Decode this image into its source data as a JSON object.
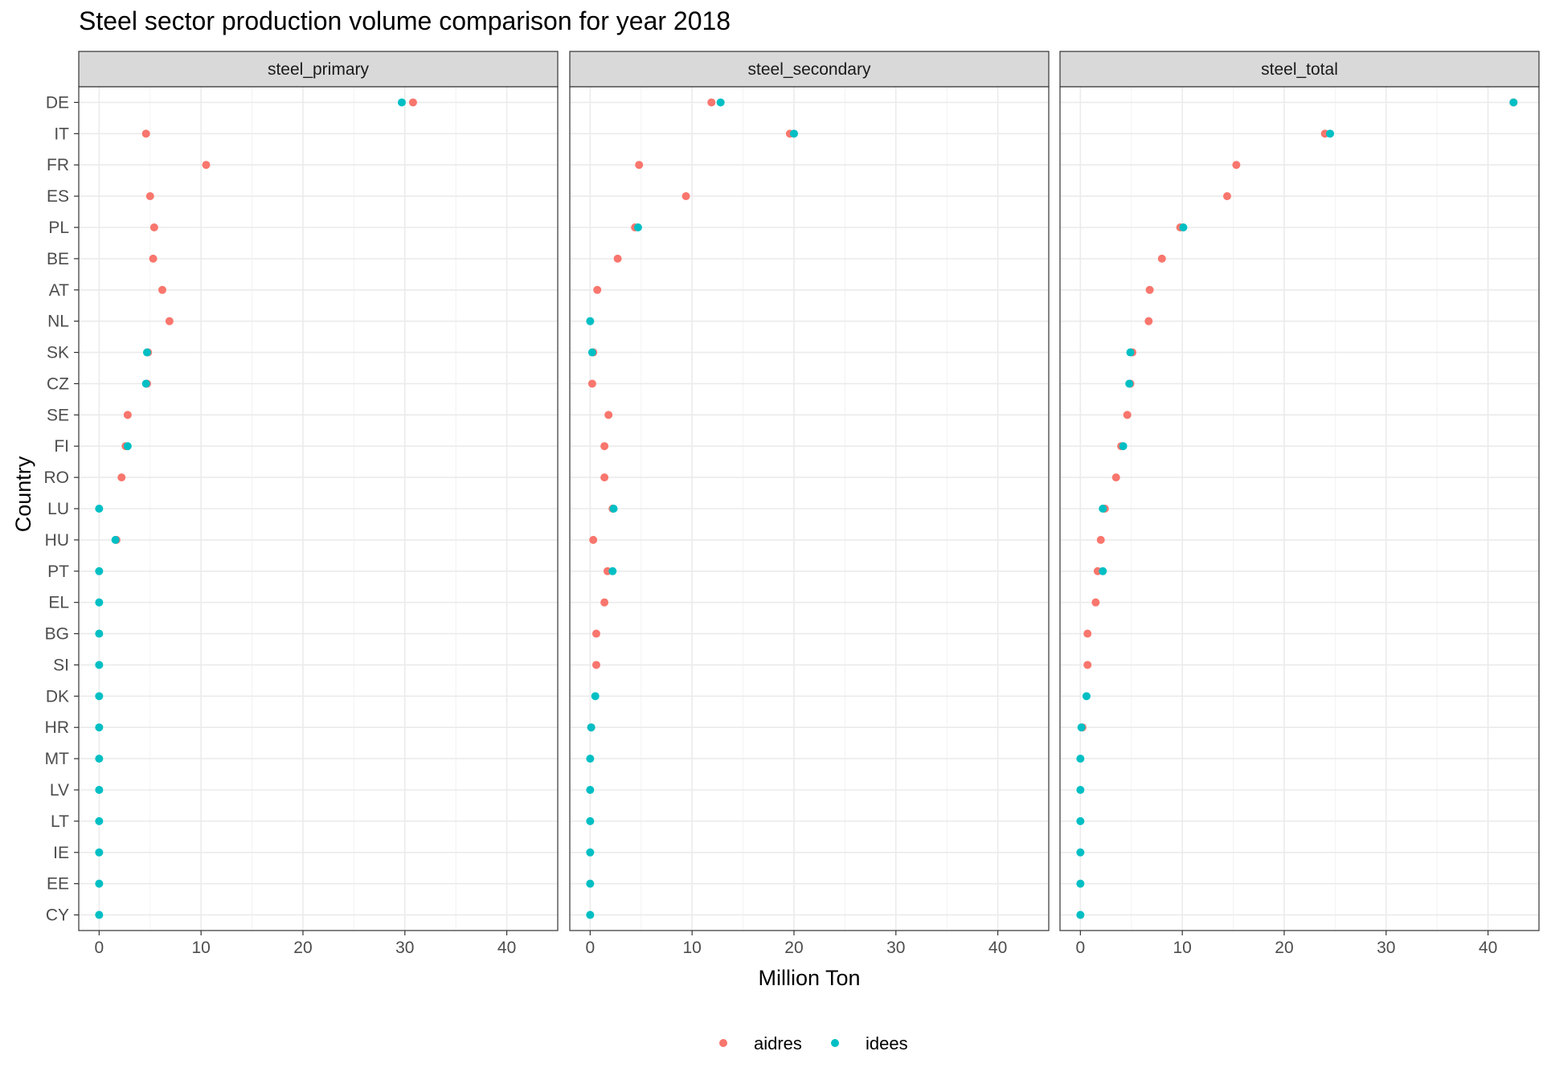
{
  "chart_data": {
    "type": "scatter",
    "title": "Steel sector production volume comparison for year 2018",
    "xlabel": "Million Ton",
    "ylabel": "Country",
    "xlim": [
      -2,
      45
    ],
    "x_ticks": [
      0,
      10,
      20,
      30,
      40
    ],
    "grid": true,
    "legend_position": "bottom",
    "countries": [
      "DE",
      "IT",
      "FR",
      "ES",
      "PL",
      "BE",
      "AT",
      "NL",
      "SK",
      "CZ",
      "SE",
      "FI",
      "RO",
      "LU",
      "HU",
      "PT",
      "EL",
      "BG",
      "SI",
      "DK",
      "HR",
      "MT",
      "LV",
      "LT",
      "IE",
      "EE",
      "CY"
    ],
    "series_names": [
      "aidres",
      "idees"
    ],
    "series_colors": {
      "aidres": "#F8766D",
      "idees": "#00BFC4"
    },
    "panels": [
      {
        "name": "steel_primary",
        "aidres": [
          30.8,
          4.6,
          10.5,
          5.0,
          5.4,
          5.3,
          6.2,
          6.9,
          4.8,
          4.7,
          2.8,
          2.6,
          2.2,
          null,
          1.7,
          null,
          null,
          null,
          null,
          null,
          null,
          null,
          null,
          null,
          null,
          null,
          null
        ],
        "idees": [
          29.7,
          null,
          null,
          null,
          null,
          null,
          null,
          null,
          4.7,
          4.6,
          null,
          2.8,
          null,
          0.0,
          1.6,
          0.0,
          0.0,
          0.0,
          0.0,
          0.0,
          0.0,
          0.0,
          0.0,
          0.0,
          0.0,
          0.0,
          0.0
        ]
      },
      {
        "name": "steel_secondary",
        "aidres": [
          11.9,
          19.6,
          4.8,
          9.4,
          4.4,
          2.7,
          0.7,
          null,
          0.3,
          0.2,
          1.8,
          1.4,
          1.4,
          2.2,
          0.3,
          1.7,
          1.4,
          0.6,
          0.6,
          null,
          0.1,
          null,
          null,
          null,
          null,
          null,
          null
        ],
        "idees": [
          12.8,
          20.0,
          null,
          null,
          4.7,
          null,
          null,
          0.0,
          0.2,
          null,
          null,
          null,
          null,
          2.3,
          null,
          2.2,
          null,
          null,
          null,
          0.5,
          0.1,
          0.0,
          0.0,
          0.0,
          0.0,
          0.0,
          0.0
        ]
      },
      {
        "name": "steel_total",
        "aidres": [
          42.5,
          24.0,
          15.3,
          14.4,
          9.8,
          8.0,
          6.8,
          6.7,
          5.1,
          4.9,
          4.6,
          4.0,
          3.5,
          2.4,
          2.0,
          1.7,
          1.5,
          0.7,
          0.7,
          null,
          0.2,
          null,
          null,
          null,
          null,
          null,
          null
        ],
        "idees": [
          42.5,
          24.5,
          null,
          null,
          10.1,
          null,
          null,
          null,
          4.9,
          4.8,
          null,
          4.2,
          null,
          2.2,
          null,
          2.2,
          null,
          null,
          null,
          0.6,
          0.1,
          0.0,
          0.0,
          0.0,
          0.0,
          0.0,
          0.0
        ]
      }
    ]
  }
}
